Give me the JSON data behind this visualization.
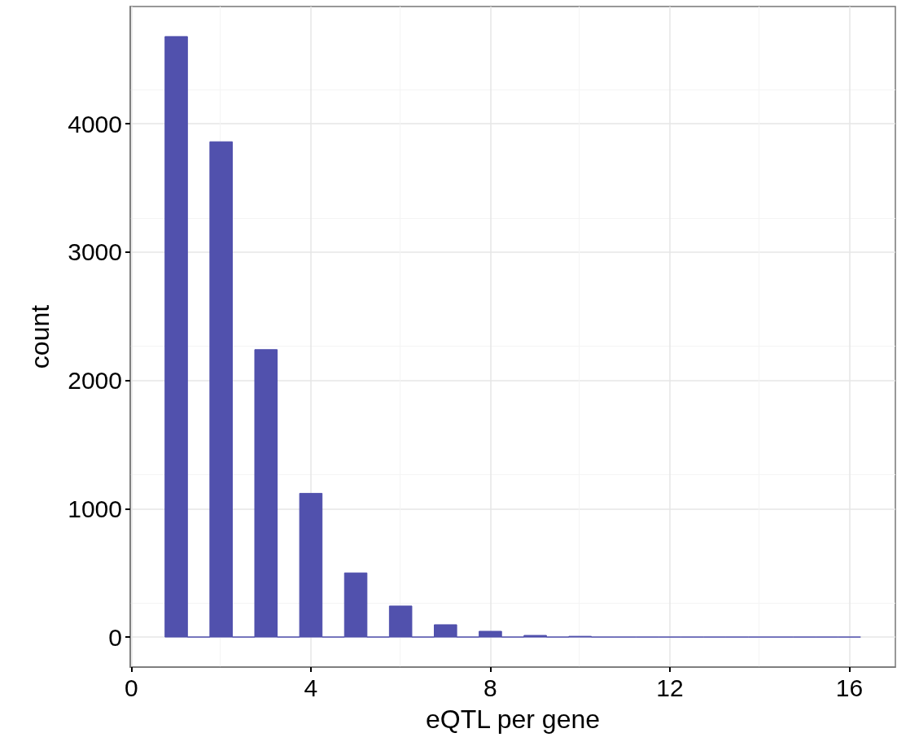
{
  "chart_data": {
    "type": "histogram",
    "xlabel": "eQTL per gene",
    "ylabel": "count",
    "bins": [
      0.75,
      1.25,
      1.75,
      2.25,
      2.75,
      3.25,
      3.75,
      4.25,
      4.75,
      5.25,
      5.75,
      6.25,
      6.75,
      7.25,
      7.75,
      8.25,
      8.75,
      9.25,
      9.75,
      10.25,
      10.75,
      11.25,
      11.75,
      12.25,
      12.75,
      13.25,
      13.75,
      14.25,
      14.75,
      15.25,
      15.75,
      16.25
    ],
    "values": [
      4680,
      0,
      3860,
      0,
      2240,
      0,
      1120,
      0,
      500,
      0,
      242,
      0,
      96,
      0,
      45,
      0,
      13,
      0,
      6,
      0,
      0,
      0,
      0,
      0,
      0,
      0,
      0,
      0,
      0,
      0,
      0
    ],
    "color": "#4b4baa",
    "xlim": [
      -0.025,
      17.025
    ],
    "xticks": [
      0,
      4,
      8,
      12,
      16
    ],
    "ylim": [
      -234,
      4914
    ],
    "yticks": [
      0,
      1000,
      2000,
      3000,
      4000
    ],
    "grid": true
  }
}
